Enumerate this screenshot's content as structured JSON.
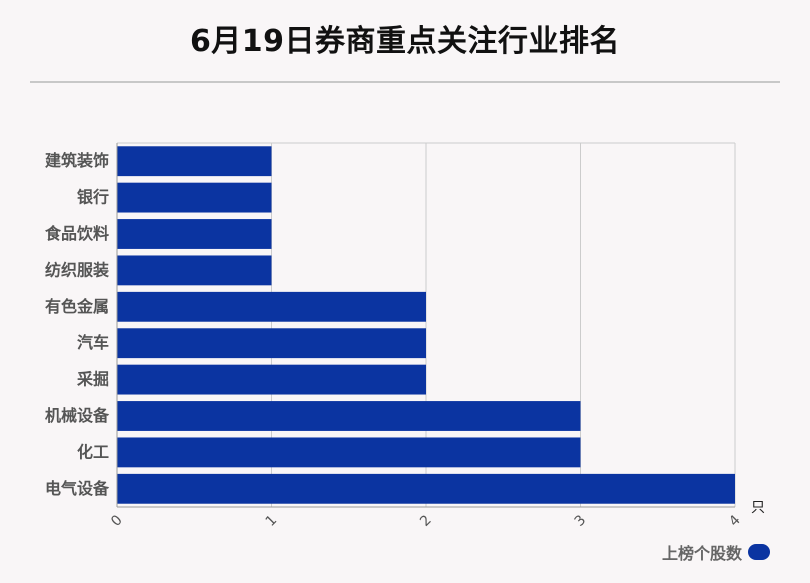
{
  "title": "6月19日券商重点关注行业排名",
  "colors": {
    "bar": "#0b34a1",
    "grid": "#cccccc",
    "axis": "#999999",
    "label": "#555555"
  },
  "chart_data": {
    "type": "bar",
    "orientation": "horizontal",
    "title": "6月19日券商重点关注行业排名",
    "categories": [
      "建筑装饰",
      "银行",
      "食品饮料",
      "纺织服装",
      "有色金属",
      "汽车",
      "采掘",
      "机械设备",
      "化工",
      "电气设备"
    ],
    "series": [
      {
        "name": "上榜个股数",
        "values": [
          1,
          1,
          1,
          1,
          2,
          2,
          2,
          3,
          3,
          4
        ]
      }
    ],
    "x_ticks": [
      "0",
      "1",
      "2",
      "3",
      "4"
    ],
    "xlim": [
      0,
      4
    ],
    "x_unit": "只",
    "grid": true,
    "legend": "bottom-right"
  }
}
